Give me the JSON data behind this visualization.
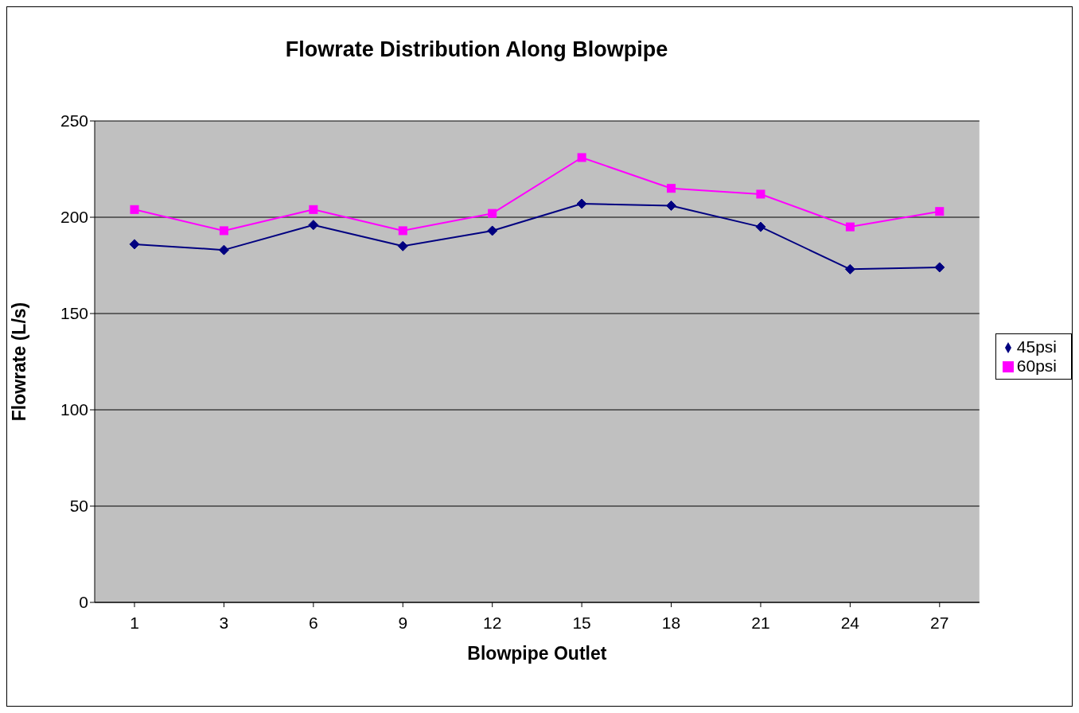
{
  "chart_data": {
    "type": "line",
    "title": "Flowrate Distribution Along Blowpipe",
    "xlabel": "Blowpipe Outlet",
    "ylabel": "Flowrate (L/s)",
    "categories": [
      "1",
      "3",
      "6",
      "9",
      "12",
      "15",
      "18",
      "21",
      "24",
      "27"
    ],
    "series": [
      {
        "name": "45psi",
        "color": "#000080",
        "marker": "diamond",
        "values": [
          186,
          183,
          196,
          185,
          193,
          207,
          206,
          195,
          173,
          174
        ]
      },
      {
        "name": "60psi",
        "color": "#ff00ff",
        "marker": "square",
        "values": [
          204,
          193,
          204,
          193,
          202,
          231,
          215,
          212,
          195,
          203
        ]
      }
    ],
    "ylim": [
      0,
      250
    ],
    "yticks": [
      0,
      50,
      100,
      150,
      200,
      250
    ],
    "grid": "y",
    "legend": "right"
  }
}
